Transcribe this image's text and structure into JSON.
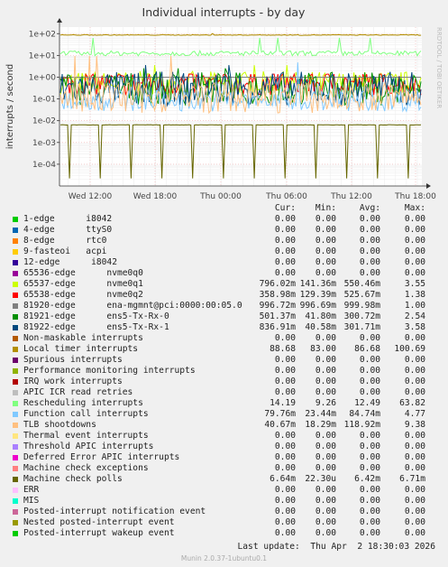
{
  "chart_data": {
    "type": "line",
    "title": "Individual interrupts - by day",
    "ylabel": "interrupts / second",
    "y_scale": "log",
    "ylim": [
      1e-05,
      200
    ],
    "y_ticks": [
      "1e-04",
      "1e-03",
      "1e-02",
      "1e-01",
      "1e+00",
      "1e+01",
      "1e+02"
    ],
    "x_ticks": [
      "Wed 12:00",
      "Wed 18:00",
      "Thu 00:00",
      "Thu 06:00",
      "Thu 12:00",
      "Thu 18:00"
    ],
    "grid": true,
    "side_label": "RRDTOOL / TOBI OETIKER",
    "legend_headers": [
      "Cur:",
      "Min:",
      "Avg:",
      "Max:"
    ],
    "series": [
      {
        "name": "1-edge      i8042",
        "color": "#00cc00",
        "cur": "0.00",
        "min": "0.00",
        "avg": "0.00",
        "max": "0.00"
      },
      {
        "name": "4-edge      ttyS0",
        "color": "#0066b3",
        "cur": "0.00",
        "min": "0.00",
        "avg": "0.00",
        "max": "0.00"
      },
      {
        "name": "8-edge      rtc0",
        "color": "#ff8000",
        "cur": "0.00",
        "min": "0.00",
        "avg": "0.00",
        "max": "0.00"
      },
      {
        "name": "9-fasteoi   acpi",
        "color": "#ffcc00",
        "cur": "0.00",
        "min": "0.00",
        "avg": "0.00",
        "max": "0.00"
      },
      {
        "name": "12-edge      i8042",
        "color": "#330099",
        "cur": "0.00",
        "min": "0.00",
        "avg": "0.00",
        "max": "0.00"
      },
      {
        "name": "65536-edge      nvme0q0",
        "color": "#990099",
        "cur": "0.00",
        "min": "0.00",
        "avg": "0.00",
        "max": "0.00"
      },
      {
        "name": "65537-edge      nvme0q1",
        "color": "#ccff00",
        "cur": "796.02m",
        "min": "141.36m",
        "avg": "550.46m",
        "max": "3.55"
      },
      {
        "name": "65538-edge      nvme0q2",
        "color": "#ff0000",
        "cur": "358.98m",
        "min": "129.39m",
        "avg": "525.67m",
        "max": "1.38"
      },
      {
        "name": "81920-edge      ena-mgmnt@pci:0000:00:05.0",
        "color": "#808080",
        "cur": "996.72m",
        "min": "996.69m",
        "avg": "999.98m",
        "max": "1.00"
      },
      {
        "name": "81921-edge      ens5-Tx-Rx-0",
        "color": "#008f00",
        "cur": "501.37m",
        "min": "41.80m",
        "avg": "300.72m",
        "max": "2.54"
      },
      {
        "name": "81922-edge      ens5-Tx-Rx-1",
        "color": "#00487d",
        "cur": "836.91m",
        "min": "40.58m",
        "avg": "301.71m",
        "max": "3.58"
      },
      {
        "name": "Non-maskable interrupts",
        "color": "#b35a00",
        "cur": "0.00",
        "min": "0.00",
        "avg": "0.00",
        "max": "0.00"
      },
      {
        "name": "Local timer interrupts",
        "color": "#b38f00",
        "cur": "88.68",
        "min": "83.00",
        "avg": "86.68",
        "max": "100.69"
      },
      {
        "name": "Spurious interrupts",
        "color": "#6b006b",
        "cur": "0.00",
        "min": "0.00",
        "avg": "0.00",
        "max": "0.00"
      },
      {
        "name": "Performance monitoring interrupts",
        "color": "#8fb300",
        "cur": "0.00",
        "min": "0.00",
        "avg": "0.00",
        "max": "0.00"
      },
      {
        "name": "IRQ work interrupts",
        "color": "#b30000",
        "cur": "0.00",
        "min": "0.00",
        "avg": "0.00",
        "max": "0.00"
      },
      {
        "name": "APIC ICR read retries",
        "color": "#bebebe",
        "cur": "0.00",
        "min": "0.00",
        "avg": "0.00",
        "max": "0.00"
      },
      {
        "name": "Rescheduling interrupts",
        "color": "#80ff80",
        "cur": "14.19",
        "min": "9.26",
        "avg": "12.49",
        "max": "63.82"
      },
      {
        "name": "Function call interrupts",
        "color": "#80c9ff",
        "cur": "79.76m",
        "min": "23.44m",
        "avg": "84.74m",
        "max": "4.77"
      },
      {
        "name": "TLB shootdowns",
        "color": "#ffc080",
        "cur": "40.67m",
        "min": "18.29m",
        "avg": "118.92m",
        "max": "9.38"
      },
      {
        "name": "Thermal event interrupts",
        "color": "#ffe680",
        "cur": "0.00",
        "min": "0.00",
        "avg": "0.00",
        "max": "0.00"
      },
      {
        "name": "Threshold APIC interrupts",
        "color": "#aa80ff",
        "cur": "0.00",
        "min": "0.00",
        "avg": "0.00",
        "max": "0.00"
      },
      {
        "name": "Deferred Error APIC interrupts",
        "color": "#ee00cc",
        "cur": "0.00",
        "min": "0.00",
        "avg": "0.00",
        "max": "0.00"
      },
      {
        "name": "Machine check exceptions",
        "color": "#ff8080",
        "cur": "0.00",
        "min": "0.00",
        "avg": "0.00",
        "max": "0.00"
      },
      {
        "name": "Machine check polls",
        "color": "#666600",
        "cur": "6.64m",
        "min": "22.30u",
        "avg": "6.42m",
        "max": "6.71m"
      },
      {
        "name": "ERR",
        "color": "#ffbfff",
        "cur": "0.00",
        "min": "0.00",
        "avg": "0.00",
        "max": "0.00"
      },
      {
        "name": "MIS",
        "color": "#00ffcc",
        "cur": "0.00",
        "min": "0.00",
        "avg": "0.00",
        "max": "0.00"
      },
      {
        "name": "Posted-interrupt notification event",
        "color": "#cc6699",
        "cur": "0.00",
        "min": "0.00",
        "avg": "0.00",
        "max": "0.00"
      },
      {
        "name": "Nested posted-interrupt event",
        "color": "#999900",
        "cur": "0.00",
        "min": "0.00",
        "avg": "0.00",
        "max": "0.00"
      },
      {
        "name": "Posted-interrupt wakeup event",
        "color": "#00cc00",
        "cur": "0.00",
        "min": "0.00",
        "avg": "0.00",
        "max": "0.00"
      }
    ]
  },
  "footer": {
    "last_update": "Last update:  Thu Apr  2 18:30:03 2026",
    "munin_version": "Munin 2.0.37-1ubuntu0.1"
  }
}
